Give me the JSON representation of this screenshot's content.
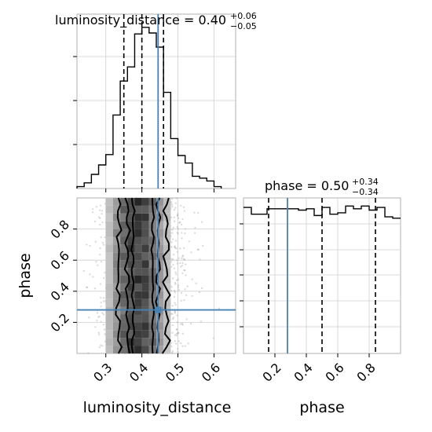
{
  "chart_data": {
    "type": "corner",
    "truth_color": "#4682b4",
    "panels": {
      "luminosity_distance_hist": {
        "type": "histogram",
        "title": "luminosity_distance = 0.40",
        "title_sup": "+0.06",
        "title_sub": "−0.05",
        "bins": [
          0.22,
          0.24,
          0.26,
          0.28,
          0.3,
          0.32,
          0.34,
          0.36,
          0.38,
          0.4,
          0.42,
          0.44,
          0.46,
          0.48,
          0.5,
          0.52,
          0.54,
          0.56,
          0.58,
          0.6,
          0.62
        ],
        "counts": [
          2,
          6,
          15,
          25,
          36,
          78,
          114,
          129,
          164,
          171,
          165,
          150,
          102,
          53,
          35,
          27,
          13,
          11,
          8,
          2
        ],
        "quantiles": [
          0.35,
          0.4,
          0.46
        ],
        "truth": 0.445,
        "xlim": [
          0.22,
          0.66
        ],
        "ylim": [
          0,
          185
        ]
      },
      "phase_hist": {
        "type": "histogram",
        "title": "phase = 0.50",
        "title_sup": "+0.34",
        "title_sub": "−0.34",
        "bins": [
          0.0,
          0.05,
          0.1,
          0.15,
          0.2,
          0.25,
          0.3,
          0.35,
          0.4,
          0.45,
          0.5,
          0.55,
          0.6,
          0.65,
          0.7,
          0.75,
          0.8,
          0.85,
          0.9,
          0.95,
          1.0
        ],
        "counts": [
          108,
          103,
          103,
          107,
          107,
          107,
          107,
          106,
          107,
          102,
          108,
          103,
          104,
          109,
          107,
          109,
          106,
          108,
          101,
          100
        ],
        "quantiles": [
          0.16,
          0.5,
          0.84
        ],
        "truth": 0.28,
        "xlim": [
          0.0,
          1.0
        ],
        "ylim": [
          0,
          115
        ]
      },
      "joint": {
        "type": "2d-density",
        "x": "luminosity_distance",
        "y": "phase",
        "xlim": [
          0.22,
          0.66
        ],
        "ylim": [
          0.0,
          1.0
        ],
        "truth": [
          0.445,
          0.28
        ]
      }
    },
    "axes": {
      "xlabel_left": "luminosity_distance",
      "xlabel_right": "phase",
      "ylabel": "phase",
      "ticks_luminosity_distance": [
        "0.3",
        "0.4",
        "0.5",
        "0.6"
      ],
      "ticks_phase_x": [
        "0.2",
        "0.4",
        "0.6",
        "0.8"
      ],
      "ticks_phase_y": [
        "0.2",
        "0.4",
        "0.6",
        "0.8"
      ]
    },
    "grid": true
  }
}
